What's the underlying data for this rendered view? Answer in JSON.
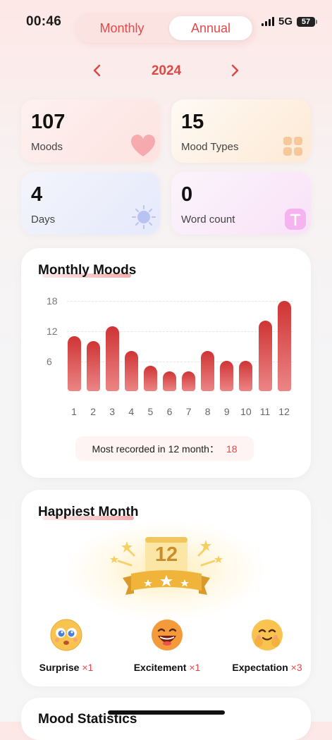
{
  "status_bar": {
    "time": "00:46",
    "network": "5G",
    "battery": "57"
  },
  "view_toggle": {
    "monthly_label": "Monthly",
    "annual_label": "Annual",
    "selected": "Annual"
  },
  "year_nav": {
    "year": "2024",
    "prev_icon": "chevron-left-icon",
    "next_icon": "chevron-right-icon"
  },
  "stats": [
    {
      "value": "107",
      "label": "Moods",
      "icon": "heart-icon"
    },
    {
      "value": "15",
      "label": "Mood Types",
      "icon": "grid-icon"
    },
    {
      "value": "4",
      "label": "Days",
      "icon": "sun-icon"
    },
    {
      "value": "0",
      "label": "Word count",
      "icon": "text-icon"
    }
  ],
  "monthly_moods": {
    "title": "Monthly Moods",
    "most_recorded_label": "Most recorded in 12 month：",
    "most_recorded_value": "18"
  },
  "chart_data": {
    "type": "bar",
    "title": "Monthly Moods",
    "categories": [
      "1",
      "2",
      "3",
      "4",
      "5",
      "6",
      "7",
      "8",
      "9",
      "10",
      "11",
      "12"
    ],
    "values": [
      11,
      10,
      13,
      8,
      5,
      4,
      4,
      8,
      6,
      6,
      14,
      18
    ],
    "yticks": [
      "18",
      "12",
      "6"
    ],
    "ylim": [
      0,
      18
    ],
    "grid": true,
    "colors": {
      "bar_top": "#cf3434",
      "bar_bottom": "#ec8585"
    }
  },
  "happiest_month": {
    "title": "Happiest Month",
    "month": "12",
    "moods": [
      {
        "name": "Surprise",
        "count": "×1",
        "icon": "surprise-emoji-icon"
      },
      {
        "name": "Excitement",
        "count": "×1",
        "icon": "excitement-emoji-icon"
      },
      {
        "name": "Expectation",
        "count": "×3",
        "icon": "expectation-emoji-icon"
      }
    ]
  },
  "mood_statistics": {
    "title": "Mood Statistics"
  },
  "colors": {
    "accent": "#d94a47",
    "gold": "#c98d2a"
  }
}
